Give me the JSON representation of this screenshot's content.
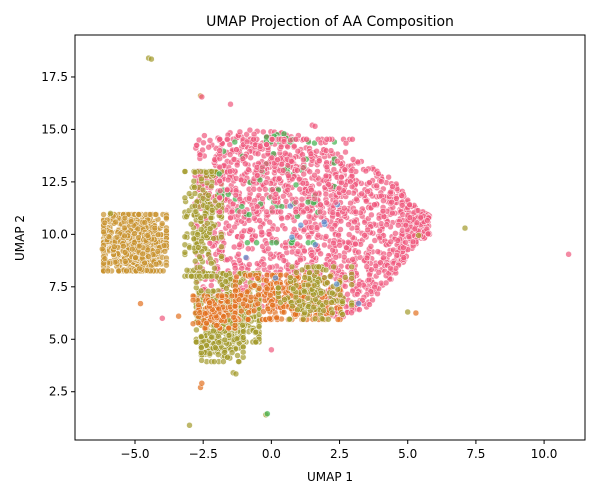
{
  "chart_data": {
    "type": "scatter",
    "title": "UMAP Projection of AA Composition",
    "xlabel": "UMAP 1",
    "ylabel": "UMAP 2",
    "xlim": [
      -7.2,
      11.5
    ],
    "ylim": [
      0.2,
      19.5
    ],
    "x_ticks": [
      -5.0,
      -2.5,
      0.0,
      2.5,
      5.0,
      7.5,
      10.0
    ],
    "x_tick_labels": [
      "−5.0",
      "−2.5",
      "0.0",
      "2.5",
      "5.0",
      "7.5",
      "10.0"
    ],
    "y_ticks": [
      2.5,
      5.0,
      7.5,
      10.0,
      12.5,
      15.0,
      17.5
    ],
    "y_tick_labels": [
      "2.5",
      "5.0",
      "7.5",
      "10.0",
      "12.5",
      "15.0",
      "17.5"
    ],
    "grid": false,
    "legend": "none",
    "marker_alpha": 0.7,
    "colors": {
      "pink": "#f0587d",
      "olive": "#a39a2b",
      "orange": "#e2701f",
      "green": "#3db04b",
      "tan": "#c9932f",
      "blue": "#5a8fd0"
    },
    "clusters": [
      {
        "color": "pink",
        "count": 1600,
        "shape": "box",
        "x": [
          -2.8,
          5.8
        ],
        "y": [
          6.0,
          15.0
        ],
        "edge_y": [
          [
            -2.8,
            7.0,
            14.7
          ],
          [
            -1.0,
            6.5,
            15.0
          ],
          [
            1.0,
            6.5,
            14.8
          ],
          [
            2.5,
            6.0,
            13.8
          ],
          [
            3.5,
            6.5,
            13.4
          ],
          [
            4.5,
            8.0,
            12.6
          ],
          [
            5.3,
            9.5,
            11.3
          ],
          [
            5.8,
            10.0,
            10.9
          ]
        ]
      },
      {
        "color": "tan",
        "count": 650,
        "shape": "ellipse",
        "cx": -5.0,
        "cy": 9.6,
        "rx": 1.2,
        "ry": 1.4
      },
      {
        "color": "olive",
        "count": 380,
        "shape": "ellipse",
        "cx": -1.6,
        "cy": 6.5,
        "rx": 1.2,
        "ry": 1.7
      },
      {
        "color": "olive",
        "count": 160,
        "shape": "ellipse",
        "cx": -1.8,
        "cy": 4.8,
        "rx": 0.8,
        "ry": 0.9
      },
      {
        "color": "orange",
        "count": 320,
        "shape": "ellipse",
        "cx": 0.6,
        "cy": 7.0,
        "rx": 2.0,
        "ry": 1.1
      },
      {
        "color": "orange",
        "count": 120,
        "shape": "ellipse",
        "cx": -2.1,
        "cy": 6.3,
        "rx": 0.8,
        "ry": 0.8
      },
      {
        "color": "olive",
        "count": 200,
        "shape": "ellipse",
        "cx": -2.5,
        "cy": 10.5,
        "rx": 0.7,
        "ry": 2.6
      },
      {
        "color": "olive",
        "count": 140,
        "shape": "ellipse",
        "cx": 1.6,
        "cy": 7.2,
        "rx": 1.4,
        "ry": 1.3
      },
      {
        "color": "green",
        "count": 60,
        "shape": "ellipse",
        "cx": 0.2,
        "cy": 12.0,
        "rx": 2.2,
        "ry": 2.5
      },
      {
        "color": "green",
        "count": 12,
        "shape": "ellipse",
        "cx": 0.2,
        "cy": 14.6,
        "rx": 0.6,
        "ry": 0.2
      },
      {
        "color": "blue",
        "count": 10,
        "shape": "ellipse",
        "cx": 0.5,
        "cy": 9.5,
        "rx": 2.0,
        "ry": 2.0
      },
      {
        "color": "pink",
        "count": 220,
        "shape": "ellipse",
        "cx": 0.6,
        "cy": 12.8,
        "rx": 2.6,
        "ry": 1.8
      }
    ],
    "outliers": [
      {
        "x": -4.5,
        "y": 18.4,
        "color": "olive"
      },
      {
        "x": -4.4,
        "y": 18.35,
        "color": "olive"
      },
      {
        "x": -3.4,
        "y": 6.1,
        "color": "orange"
      },
      {
        "x": -4.0,
        "y": 6.0,
        "color": "pink"
      },
      {
        "x": -4.8,
        "y": 6.7,
        "color": "orange"
      },
      {
        "x": -3.0,
        "y": 0.9,
        "color": "olive"
      },
      {
        "x": -0.2,
        "y": 1.4,
        "color": "olive"
      },
      {
        "x": -0.15,
        "y": 1.45,
        "color": "green"
      },
      {
        "x": -2.6,
        "y": 2.7,
        "color": "orange"
      },
      {
        "x": -2.55,
        "y": 2.9,
        "color": "orange"
      },
      {
        "x": -1.4,
        "y": 3.4,
        "color": "olive"
      },
      {
        "x": -1.3,
        "y": 3.35,
        "color": "olive"
      },
      {
        "x": 0.0,
        "y": 4.5,
        "color": "pink"
      },
      {
        "x": -2.6,
        "y": 16.6,
        "color": "tan"
      },
      {
        "x": -2.55,
        "y": 16.55,
        "color": "pink"
      },
      {
        "x": -1.5,
        "y": 16.2,
        "color": "pink"
      },
      {
        "x": 1.5,
        "y": 15.2,
        "color": "pink"
      },
      {
        "x": 1.6,
        "y": 15.15,
        "color": "pink"
      },
      {
        "x": 7.1,
        "y": 10.3,
        "color": "olive"
      },
      {
        "x": 10.9,
        "y": 9.05,
        "color": "pink"
      },
      {
        "x": 5.4,
        "y": 9.95,
        "color": "olive"
      },
      {
        "x": 5.0,
        "y": 6.3,
        "color": "olive"
      },
      {
        "x": 5.3,
        "y": 6.25,
        "color": "orange"
      },
      {
        "x": 3.2,
        "y": 6.7,
        "color": "blue"
      },
      {
        "x": -5.9,
        "y": 11.0,
        "color": "olive"
      },
      {
        "x": -6.2,
        "y": 9.3,
        "color": "tan"
      }
    ]
  }
}
